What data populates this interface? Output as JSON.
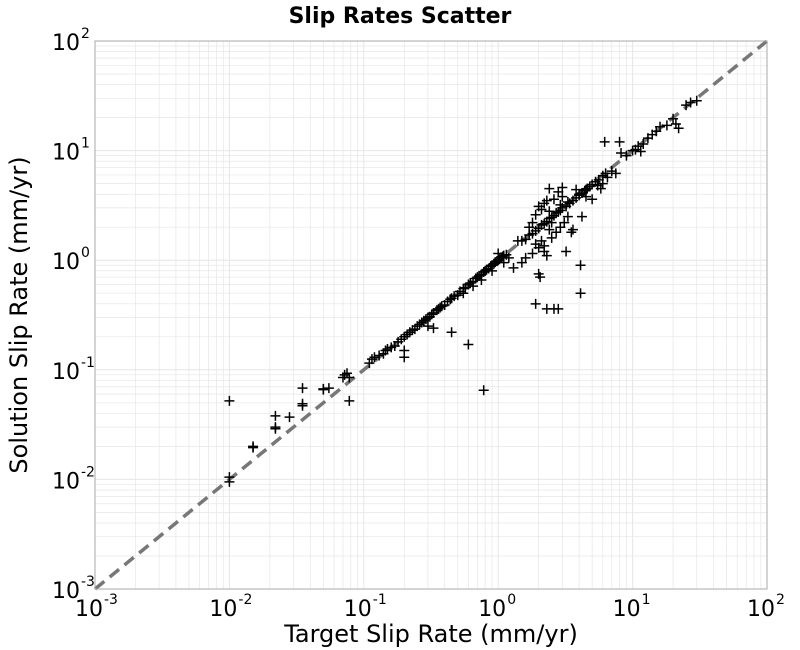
{
  "chart_data": {
    "type": "scatter",
    "title": "Slip Rates Scatter",
    "xlabel": "Target Slip Rate (mm/yr)",
    "ylabel": "Solution Slip Rate (mm/yr)",
    "xscale": "log",
    "yscale": "log",
    "xlim": [
      0.001,
      100
    ],
    "ylim": [
      0.001,
      100
    ],
    "grid": true,
    "marker": "plus",
    "colors": {
      "points": "#000000",
      "reference_line": "#777777",
      "grid": "#e6e6e6",
      "frame": "#aaaaaa"
    },
    "reference_line": {
      "style": "dashed",
      "from": [
        0.001,
        0.001
      ],
      "to": [
        100,
        100
      ]
    },
    "xticks": [
      {
        "base": "10",
        "exp": "-3"
      },
      {
        "base": "10",
        "exp": "-2"
      },
      {
        "base": "10",
        "exp": "-1"
      },
      {
        "base": "10",
        "exp": "0"
      },
      {
        "base": "10",
        "exp": "1"
      },
      {
        "base": "10",
        "exp": "2"
      }
    ],
    "yticks": [
      {
        "base": "10",
        "exp": "-3"
      },
      {
        "base": "10",
        "exp": "-2"
      },
      {
        "base": "10",
        "exp": "-1"
      },
      {
        "base": "10",
        "exp": "0"
      },
      {
        "base": "10",
        "exp": "1"
      },
      {
        "base": "10",
        "exp": "2"
      }
    ],
    "points": [
      [
        0.01,
        0.0095
      ],
      [
        0.01,
        0.0105
      ],
      [
        0.01,
        0.052
      ],
      [
        0.015,
        0.0195
      ],
      [
        0.015,
        0.02
      ],
      [
        0.022,
        0.029
      ],
      [
        0.022,
        0.03
      ],
      [
        0.022,
        0.038
      ],
      [
        0.028,
        0.037
      ],
      [
        0.035,
        0.047
      ],
      [
        0.035,
        0.049
      ],
      [
        0.035,
        0.068
      ],
      [
        0.05,
        0.066
      ],
      [
        0.05,
        0.067
      ],
      [
        0.055,
        0.068
      ],
      [
        0.07,
        0.085
      ],
      [
        0.072,
        0.09
      ],
      [
        0.075,
        0.093
      ],
      [
        0.078,
        0.085
      ],
      [
        0.078,
        0.052
      ],
      [
        0.11,
        0.115
      ],
      [
        0.115,
        0.125
      ],
      [
        0.12,
        0.13
      ],
      [
        0.13,
        0.135
      ],
      [
        0.14,
        0.14
      ],
      [
        0.145,
        0.15
      ],
      [
        0.15,
        0.155
      ],
      [
        0.16,
        0.16
      ],
      [
        0.17,
        0.165
      ],
      [
        0.18,
        0.18
      ],
      [
        0.19,
        0.19
      ],
      [
        0.2,
        0.2
      ],
      [
        0.21,
        0.21
      ],
      [
        0.22,
        0.22
      ],
      [
        0.23,
        0.23
      ],
      [
        0.24,
        0.235
      ],
      [
        0.25,
        0.25
      ],
      [
        0.26,
        0.26
      ],
      [
        0.27,
        0.27
      ],
      [
        0.28,
        0.28
      ],
      [
        0.29,
        0.29
      ],
      [
        0.3,
        0.3
      ],
      [
        0.31,
        0.305
      ],
      [
        0.32,
        0.32
      ],
      [
        0.33,
        0.33
      ],
      [
        0.35,
        0.35
      ],
      [
        0.36,
        0.36
      ],
      [
        0.37,
        0.37
      ],
      [
        0.38,
        0.38
      ],
      [
        0.4,
        0.39
      ],
      [
        0.42,
        0.42
      ],
      [
        0.44,
        0.44
      ],
      [
        0.45,
        0.45
      ],
      [
        0.47,
        0.47
      ],
      [
        0.5,
        0.48
      ],
      [
        0.52,
        0.52
      ],
      [
        0.55,
        0.55
      ],
      [
        0.57,
        0.56
      ],
      [
        0.6,
        0.6
      ],
      [
        0.62,
        0.62
      ],
      [
        0.65,
        0.64
      ],
      [
        0.68,
        0.68
      ],
      [
        0.7,
        0.7
      ],
      [
        0.72,
        0.72
      ],
      [
        0.75,
        0.74
      ],
      [
        0.78,
        0.78
      ],
      [
        0.8,
        0.8
      ],
      [
        0.82,
        0.82
      ],
      [
        0.85,
        0.84
      ],
      [
        0.88,
        0.88
      ],
      [
        0.9,
        0.9
      ],
      [
        0.93,
        0.93
      ],
      [
        0.95,
        0.96
      ],
      [
        0.98,
        0.98
      ],
      [
        1.0,
        1.0
      ],
      [
        1.02,
        1.02
      ],
      [
        1.05,
        1.06
      ],
      [
        1.08,
        1.08
      ],
      [
        1.1,
        1.1
      ],
      [
        1.15,
        1.12
      ],
      [
        0.2,
        0.13
      ],
      [
        0.33,
        0.24
      ],
      [
        0.45,
        0.22
      ],
      [
        0.6,
        0.17
      ],
      [
        0.78,
        0.065
      ],
      [
        0.2,
        0.15
      ],
      [
        0.3,
        0.25
      ],
      [
        0.55,
        0.5
      ],
      [
        0.65,
        0.58
      ],
      [
        0.75,
        0.66
      ],
      [
        0.9,
        0.8
      ],
      [
        1.0,
        1.15
      ],
      [
        1.1,
        0.95
      ],
      [
        1.2,
        1.05
      ],
      [
        1.3,
        0.85
      ],
      [
        1.5,
        1.5
      ],
      [
        1.6,
        1.55
      ],
      [
        1.7,
        1.7
      ],
      [
        1.8,
        1.75
      ],
      [
        1.9,
        1.85
      ],
      [
        2.0,
        1.95
      ],
      [
        2.1,
        2.1
      ],
      [
        2.2,
        2.15
      ],
      [
        2.3,
        2.25
      ],
      [
        2.4,
        2.4
      ],
      [
        2.5,
        2.45
      ],
      [
        2.6,
        2.55
      ],
      [
        2.7,
        2.7
      ],
      [
        2.8,
        2.75
      ],
      [
        2.9,
        2.85
      ],
      [
        3.0,
        3.0
      ],
      [
        3.2,
        3.1
      ],
      [
        3.4,
        3.3
      ],
      [
        3.6,
        3.5
      ],
      [
        3.8,
        3.7
      ],
      [
        4.0,
        3.9
      ],
      [
        4.2,
        4.1
      ],
      [
        4.4,
        4.3
      ],
      [
        4.6,
        4.5
      ],
      [
        4.8,
        4.7
      ],
      [
        5.0,
        4.9
      ],
      [
        5.3,
        5.2
      ],
      [
        5.6,
        5.4
      ],
      [
        6.0,
        5.9
      ],
      [
        6.3,
        6.2
      ],
      [
        1.8,
        2.2
      ],
      [
        1.9,
        2.6
      ],
      [
        2.0,
        3.1
      ],
      [
        2.1,
        2.9
      ],
      [
        2.2,
        3.3
      ],
      [
        2.3,
        3.5
      ],
      [
        2.4,
        2.8
      ],
      [
        2.6,
        3.6
      ],
      [
        2.8,
        4.2
      ],
      [
        3.0,
        3.8
      ],
      [
        1.9,
        1.4
      ],
      [
        2.0,
        1.3
      ],
      [
        2.1,
        1.5
      ],
      [
        2.2,
        1.2
      ],
      [
        2.3,
        1.1
      ],
      [
        2.5,
        1.6
      ],
      [
        2.7,
        1.8
      ],
      [
        2.9,
        2.0
      ],
      [
        3.1,
        2.2
      ],
      [
        3.3,
        2.5
      ],
      [
        1.5,
        0.95
      ],
      [
        1.6,
        1.05
      ],
      [
        1.8,
        1.15
      ],
      [
        2.0,
        0.75
      ],
      [
        2.05,
        0.7
      ],
      [
        2.2,
        1.35
      ],
      [
        1.9,
        0.4
      ],
      [
        2.3,
        0.36
      ],
      [
        2.6,
        0.36
      ],
      [
        2.8,
        0.36
      ],
      [
        4.1,
        0.5
      ],
      [
        4.1,
        0.9
      ],
      [
        3.2,
        1.2
      ],
      [
        3.5,
        1.8
      ],
      [
        2.4,
        4.5
      ],
      [
        3.0,
        4.6
      ],
      [
        3.8,
        4.4
      ],
      [
        4.5,
        3.8
      ],
      [
        4.2,
        2.5
      ],
      [
        5.0,
        3.6
      ],
      [
        5.5,
        4.8
      ],
      [
        6.0,
        5.0
      ],
      [
        6.5,
        5.7
      ],
      [
        7.0,
        6.5
      ],
      [
        7.5,
        6.2
      ],
      [
        8.0,
        12.0
      ],
      [
        8.2,
        9.5
      ],
      [
        9.0,
        9.0
      ],
      [
        10.0,
        10.0
      ],
      [
        10.5,
        10.2
      ],
      [
        11.0,
        11.0
      ],
      [
        11.5,
        9.8
      ],
      [
        12.0,
        11.5
      ],
      [
        13.0,
        13.0
      ],
      [
        14.0,
        14.0
      ],
      [
        15.0,
        15.0
      ],
      [
        16.0,
        16.5
      ],
      [
        18.0,
        17.0
      ],
      [
        20.0,
        19.5
      ],
      [
        21.0,
        17.5
      ],
      [
        22.0,
        16.0
      ],
      [
        25.0,
        26.0
      ],
      [
        27.0,
        27.5
      ],
      [
        30.0,
        28.5
      ],
      [
        6.2,
        12.0
      ],
      [
        5.8,
        4.5
      ],
      [
        3.6,
        1.9
      ],
      [
        2.5,
        2.2
      ],
      [
        2.9,
        3.2
      ],
      [
        4.0,
        4.0
      ],
      [
        4.5,
        4.4
      ],
      [
        3.3,
        3.4
      ],
      [
        2.4,
        1.9
      ],
      [
        1.7,
        2.0
      ],
      [
        1.4,
        1.5
      ]
    ]
  }
}
